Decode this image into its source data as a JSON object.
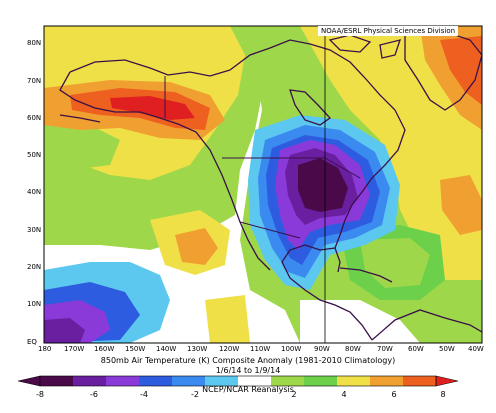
{
  "credit": "NOAA/ESRL Physical Sciences Division",
  "title": "850mb Air Temperature (K) Composite Anomaly (1981-2010 Climatology)",
  "subtitle": "1/6/14 to 1/9/14",
  "source": "NCEP/NCAR Reanalysis",
  "lat_labels": [
    "80N",
    "70N",
    "60N",
    "50N",
    "40N",
    "30N",
    "20N",
    "10N",
    "EQ"
  ],
  "lon_labels": [
    "180",
    "170W",
    "160W",
    "150W",
    "140W",
    "130W",
    "120W",
    "110W",
    "100W",
    "90W",
    "80W",
    "70W",
    "60W",
    "50W",
    "40W"
  ],
  "colorbar_ticks": [
    "-8",
    "-6",
    "-4",
    "-2",
    "2",
    "4",
    "6",
    "8"
  ],
  "colors": {
    "deep_purple": "#4a0a4a",
    "purple": "#6a1fa0",
    "violet": "#8a3ad8",
    "blue": "#2e5ce0",
    "mid_blue": "#3b8af0",
    "cyan": "#5cc8f0",
    "light_green": "#9ed84a",
    "green": "#6cd04a",
    "yellow": "#f0e048",
    "orange": "#f0a030",
    "red_orange": "#ee6020",
    "red": "#e02020"
  }
}
